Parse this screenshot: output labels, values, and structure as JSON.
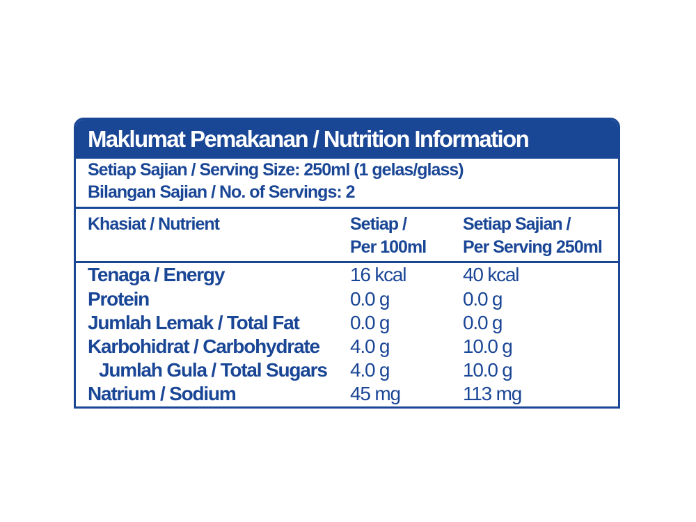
{
  "panel": {
    "title": "Maklumat Pemakanan / Nutrition Information",
    "serving_size": "Setiap Sajian / Serving Size: 250ml (1 gelas/glass)",
    "servings_count": "Bilangan Sajian / No. of Servings: 2",
    "header": {
      "nutrient": "Khasiat / Nutrient",
      "per100_line1": "Setiap /",
      "per100_line2": "Per 100ml",
      "perserving_line1": "Setiap Sajian /",
      "perserving_line2": "Per Serving 250ml"
    },
    "rows": [
      {
        "name": "Tenaga / Energy",
        "per100": "16 kcal",
        "perserving": "40 kcal"
      },
      {
        "name": "Protein",
        "per100": "0.0 g",
        "perserving": "0.0 g"
      },
      {
        "name": "Jumlah Lemak / Total Fat",
        "per100": "0.0 g",
        "perserving": "0.0 g"
      },
      {
        "name": "Karbohidrat / Carbohydrate",
        "per100": "4.0 g",
        "perserving": "10.0 g"
      },
      {
        "name": "Jumlah Gula / Total Sugars",
        "per100": "4.0 g",
        "perserving": "10.0 g"
      },
      {
        "name": "Natrium / Sodium",
        "per100": "45 mg",
        "perserving": "113 mg"
      }
    ],
    "color": "#1a4696"
  }
}
